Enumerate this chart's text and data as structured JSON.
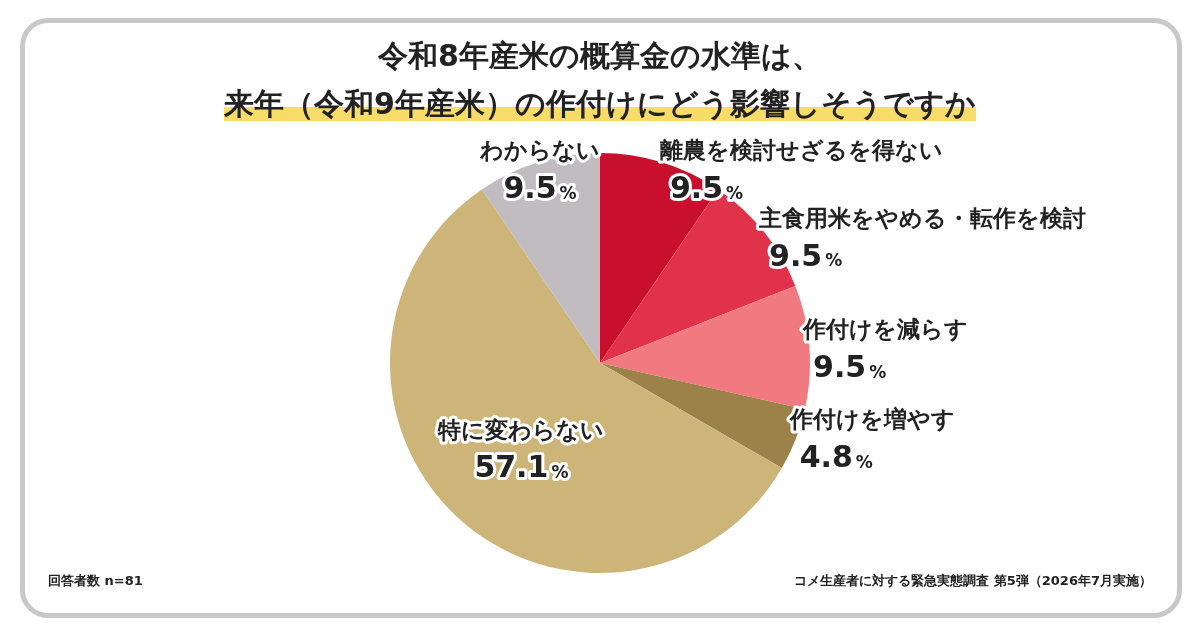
{
  "chart_data": {
    "type": "pie",
    "title": "令和8年産米の概算金の水準は、",
    "subtitle": "来年（令和9年産米）の作付けにどう影響しそうですか",
    "categories": [
      "離農を検討せざるを得ない",
      "主食用米をやめる・転作を検討",
      "作付けを減らす",
      "作付けを増やす",
      "特に変わらない",
      "わからない"
    ],
    "values": [
      9.5,
      9.5,
      9.5,
      4.8,
      57.1,
      9.5
    ],
    "colors": [
      "#c8102e",
      "#e0334a",
      "#f07a80",
      "#9c8149",
      "#cdb57a",
      "#c0bcc0"
    ],
    "value_labels": [
      "9.5%",
      "9.5%",
      "9.5%",
      "4.8%",
      "57.1%",
      "9.5%"
    ],
    "legend": false,
    "annotations": [
      "回答者数 n=81",
      "コメ生産者に対する緊急実態調査 第5弾（2026年7月実施）"
    ]
  }
}
